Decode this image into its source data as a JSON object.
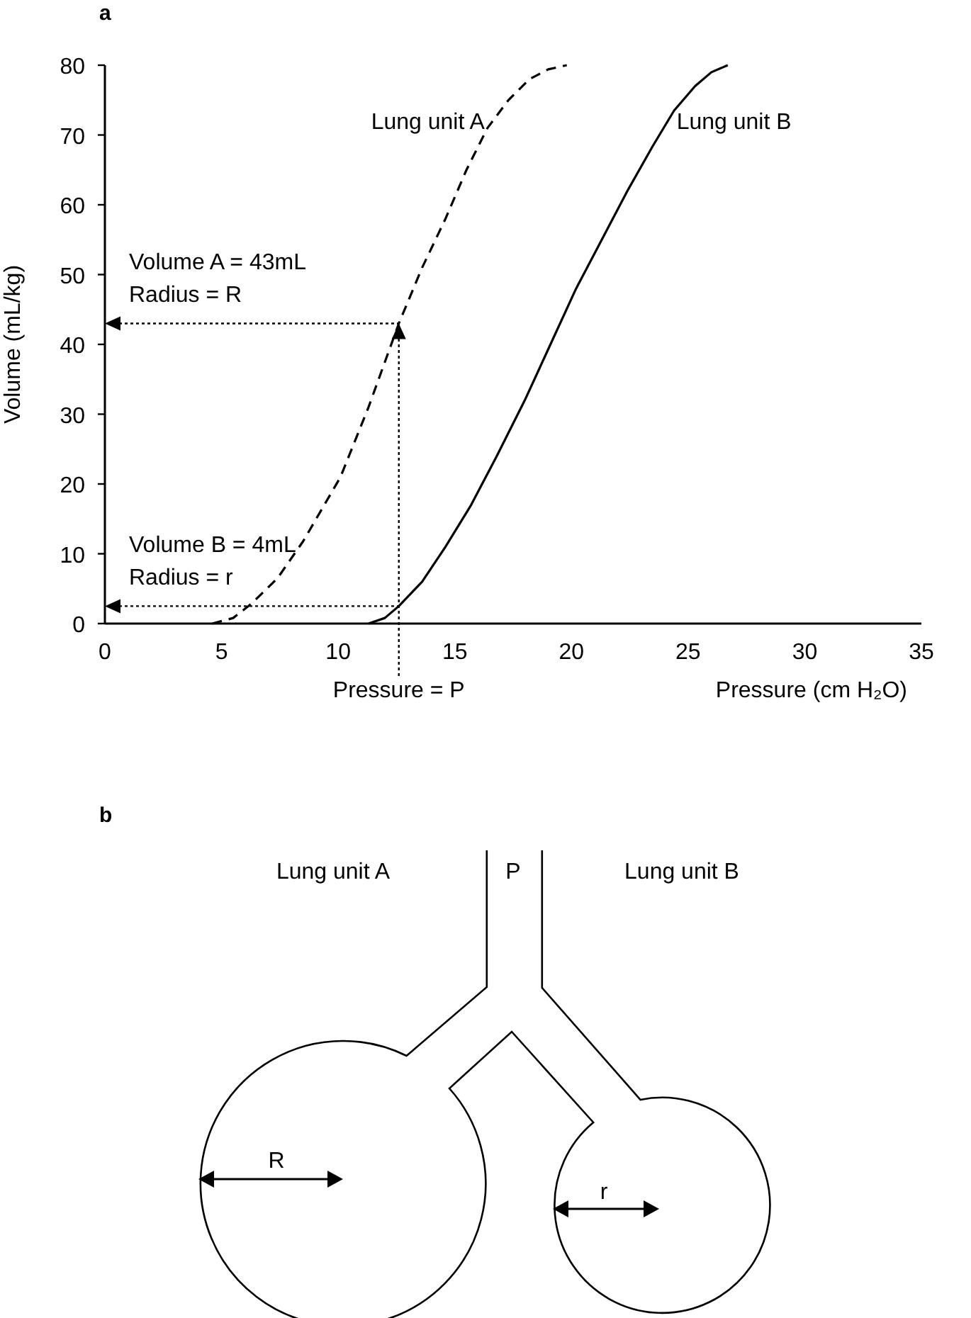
{
  "chart_data": [
    {
      "type": "line",
      "title": "a",
      "xlabel": "Pressure (cm H₂O)",
      "ylabel": "Volume (mL/kg)",
      "xlim": [
        0,
        35
      ],
      "xticks": [
        0,
        5,
        10,
        15,
        20,
        25,
        30,
        35
      ],
      "ylim": [
        0,
        80
      ],
      "yticks": [
        0,
        10,
        20,
        30,
        40,
        50,
        60,
        70,
        80
      ],
      "series": [
        {
          "name": "Lung unit A",
          "color": "#000000",
          "line_style": "dashed",
          "x": [
            4.6,
            5.5,
            6.3,
            7.4,
            8.5,
            10.1,
            11.3,
            12.6,
            13.6,
            14.6,
            15.5,
            16.4,
            17.3,
            18.2,
            19,
            19.8
          ],
          "values": [
            0,
            0.8,
            2.9,
            6.5,
            11.8,
            21,
            31,
            43,
            51,
            58,
            65,
            71,
            75,
            78,
            79.4,
            80
          ]
        },
        {
          "name": "Lung unit B",
          "color": "#000000",
          "line_style": "solid",
          "x": [
            11.3,
            12,
            12.6,
            13.6,
            14.6,
            15.7,
            16.8,
            18,
            19.1,
            20.2,
            21.3,
            22.4,
            23.5,
            24.4,
            25.3,
            26,
            26.7
          ],
          "values": [
            0,
            0.8,
            2.5,
            6,
            11,
            17,
            24,
            32,
            40,
            48,
            55,
            62,
            68.5,
            73.5,
            77,
            79,
            80
          ]
        }
      ],
      "annotations": [
        "Pressure = P",
        "Volume A = 43mL",
        {
          "text": "Radius = R",
          "x": 12.6,
          "y": 43
        },
        "Volume B = 4mL",
        {
          "text": "Radius = r",
          "x": 12.6,
          "y": 2.5
        }
      ]
    },
    {
      "type": "other",
      "title": "b",
      "annotations": [
        "Lung unit A",
        "P",
        "Lung unit B",
        "R",
        "r"
      ]
    }
  ]
}
